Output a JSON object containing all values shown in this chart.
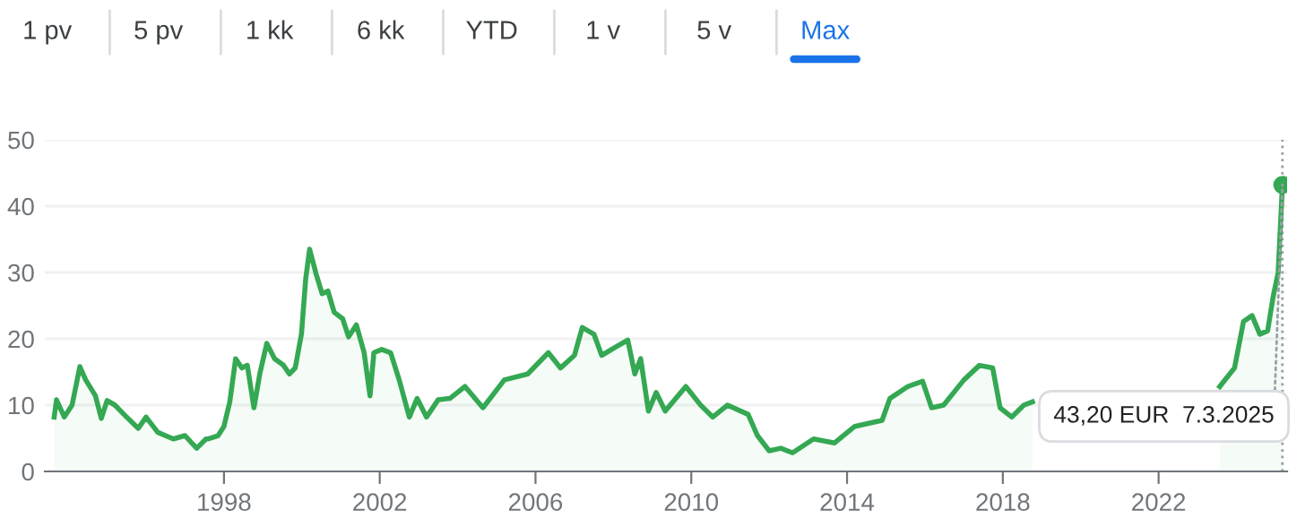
{
  "chart_data": {
    "type": "area",
    "annotations": [
      "1 pv",
      "5 pv",
      "1 kk",
      "6 kk",
      "YTD",
      "1 v",
      "5 v",
      "Max",
      {
        "text": "43,20 EUR  7.3.2025",
        "x": 2025.18,
        "y": 43.2
      }
    ],
    "series": [
      {
        "type": "area",
        "color": "#34a853",
        "x": [
          1993.64,
          1993.7,
          1993.9,
          1994.1,
          1994.3,
          1994.45,
          1994.7,
          1994.85,
          1995.0,
          1995.2,
          1995.5,
          1995.8,
          1996.0,
          1996.3,
          1996.7,
          1997.0,
          1997.3,
          1997.54,
          1997.6,
          1997.85,
          1998.0,
          1998.15,
          1998.3,
          1998.46,
          1998.6,
          1998.77,
          1998.92,
          1999.1,
          1999.3,
          1999.53,
          1999.68,
          1999.83,
          1999.99,
          2000.1,
          2000.2,
          2000.37,
          2000.52,
          2000.67,
          2000.83,
          2001.05,
          2001.2,
          2001.4,
          2001.6,
          2001.75,
          2001.85,
          2002.05,
          2002.28,
          2002.5,
          2002.76,
          2002.96,
          2003.2,
          2003.5,
          2003.8,
          2004.19,
          2004.65,
          2005.2,
          2005.8,
          2006.33,
          2006.64,
          2007.0,
          2007.2,
          2007.5,
          2007.7,
          2008.1,
          2008.37,
          2008.55,
          2008.7,
          2008.9,
          2009.1,
          2009.33,
          2009.86,
          2010.24,
          2010.55,
          2010.93,
          2011.46,
          2011.7,
          2012.0,
          2012.3,
          2012.6,
          2013.14,
          2013.68,
          2014.2,
          2014.9,
          2015.1,
          2015.56,
          2015.94,
          2016.17,
          2016.48,
          2017.0,
          2017.4,
          2017.74,
          2017.93,
          2018.23,
          2018.54,
          2018.76,
          2021.0,
          2023.57,
          2023.95,
          2024.18,
          2024.4,
          2024.6,
          2024.8,
          2024.94,
          2025.07,
          2025.18
        ],
        "values": [
          8.2,
          10.8,
          8.2,
          10,
          15.8,
          13.8,
          11.4,
          8,
          10.7,
          10,
          8.2,
          6.5,
          8.2,
          5.9,
          4.9,
          5.4,
          3.5,
          4.9,
          4.9,
          5.4,
          6.8,
          10.5,
          17,
          15.6,
          16,
          9.6,
          14.7,
          19.3,
          17,
          16,
          14.7,
          15.6,
          20.7,
          29.1,
          33.5,
          29.7,
          26.8,
          27.2,
          24,
          23,
          20.3,
          22.1,
          17.9,
          11.4,
          17.9,
          18.4,
          17.9,
          13.8,
          8.2,
          11,
          8.2,
          10.8,
          11,
          12.8,
          9.6,
          13.8,
          14.7,
          17.9,
          15.6,
          17.5,
          21.7,
          20.7,
          17.5,
          18.9,
          19.8,
          14.7,
          17,
          9.1,
          11.9,
          9.1,
          12.8,
          10,
          8.2,
          10,
          8.6,
          5.4,
          3.1,
          3.5,
          2.8,
          4.9,
          4.3,
          6.8,
          7.7,
          11,
          12.8,
          13.6,
          9.6,
          10,
          13.8,
          16,
          15.6,
          9.6,
          8.2,
          10,
          10.5,
          null,
          12.8,
          15.6,
          22.6,
          23.5,
          20.7,
          21.2,
          26.3,
          30,
          43.2
        ]
      },
      {
        "type": "scatter",
        "color": "#34a853",
        "x": [
          2025.18
        ],
        "values": [
          43.2
        ]
      }
    ],
    "xlim": [
      1993.4,
      2025.3
    ],
    "ylim": [
      0,
      50
    ],
    "xticks": [
      1998,
      2002,
      2006,
      2010,
      2014,
      2018,
      2022
    ],
    "yticks": [
      0,
      10,
      20,
      30,
      40,
      50
    ],
    "grid": "y",
    "legend": false,
    "ref_lines": [
      {
        "axis": "x",
        "value": 2025.18,
        "color": "#9aa0a6",
        "line_style": "dotted"
      }
    ]
  }
}
